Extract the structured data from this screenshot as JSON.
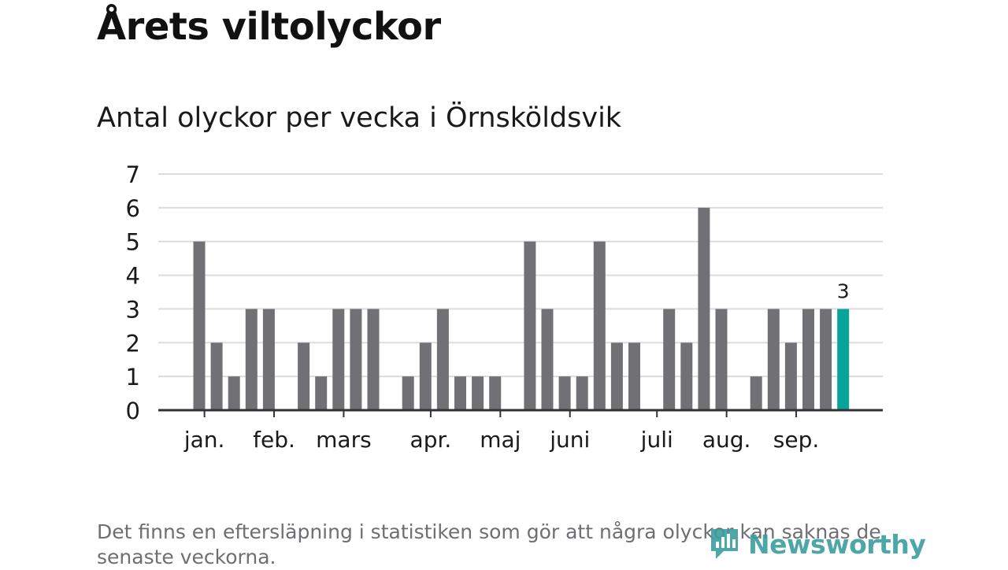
{
  "title": "Årets viltolyckor",
  "subtitle": "Antal olyckor per vecka i Örnsköldsvik",
  "footnote": "Det finns en eftersläpning i statistiken som gör att några olyckor kan saknas de senaste veckorna.",
  "brand": {
    "name": "Newsworthy",
    "logo_icon": "newsworthy-bar-chart-logo"
  },
  "colors": {
    "bar": "#717075",
    "highlight": "#0aa39a",
    "grid": "#dcdcdc",
    "axis": "#333333",
    "text": "#1a1a1a"
  },
  "chart_data": {
    "type": "bar",
    "title": "Antal olyckor per vecka i Örnsköldsvik",
    "xlabel": "",
    "ylabel": "",
    "ylim": [
      0,
      7
    ],
    "yticks": [
      0,
      1,
      2,
      3,
      4,
      5,
      6,
      7
    ],
    "weeks": [
      1,
      2,
      3,
      4,
      5,
      6,
      7,
      8,
      9,
      10,
      11,
      12,
      13,
      14,
      15,
      16,
      17,
      18,
      19,
      20,
      21,
      22,
      23,
      24,
      25,
      26,
      27,
      28,
      29,
      30,
      31,
      32,
      33,
      34,
      35,
      36,
      37,
      38
    ],
    "values": [
      5,
      2,
      1,
      3,
      3,
      0,
      2,
      1,
      3,
      3,
      3,
      0,
      1,
      2,
      3,
      1,
      1,
      1,
      0,
      5,
      3,
      1,
      1,
      5,
      2,
      2,
      0,
      3,
      2,
      6,
      3,
      0,
      1,
      3,
      2,
      3,
      3,
      3
    ],
    "highlight_index": 37,
    "highlight_label": "3",
    "month_ticks": [
      {
        "label": "jan.",
        "week": 1.3
      },
      {
        "label": "feb.",
        "week": 5.3
      },
      {
        "label": "mars",
        "week": 9.3
      },
      {
        "label": "apr.",
        "week": 14.3
      },
      {
        "label": "maj",
        "week": 18.3
      },
      {
        "label": "juni",
        "week": 22.3
      },
      {
        "label": "juli",
        "week": 27.3
      },
      {
        "label": "aug.",
        "week": 31.3
      },
      {
        "label": "sep.",
        "week": 35.3
      }
    ]
  }
}
